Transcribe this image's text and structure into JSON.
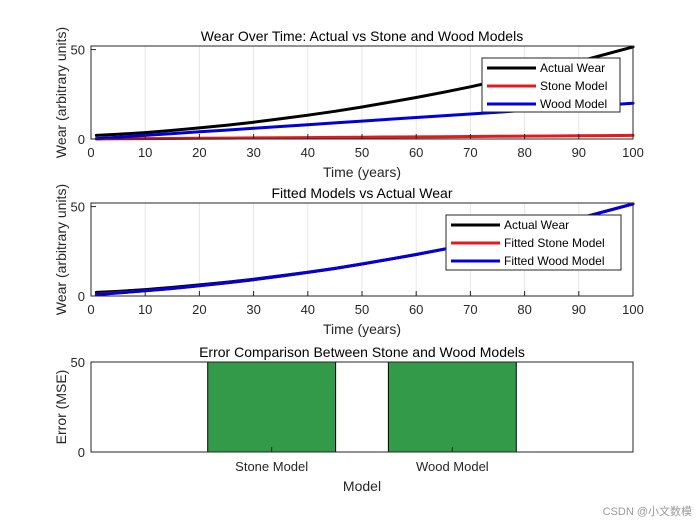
{
  "chart_data": [
    {
      "type": "line",
      "title": "Wear Over Time: Actual vs Stone and Wood Models",
      "xlabel": "Time (years)",
      "ylabel": "Wear (arbitrary units)",
      "xlim": [
        0,
        100
      ],
      "ylim": [
        0,
        52
      ],
      "xticks": [
        0,
        10,
        20,
        30,
        40,
        50,
        60,
        70,
        80,
        90,
        100
      ],
      "yticks": [
        0,
        50
      ],
      "grid": "x",
      "legend_position": "top-right",
      "x": [
        1,
        5,
        10,
        15,
        20,
        25,
        30,
        35,
        40,
        45,
        50,
        55,
        60,
        65,
        70,
        75,
        80,
        85,
        90,
        95,
        100
      ],
      "series": [
        {
          "name": "Actual Wear",
          "color": "#000000",
          "values": [
            2.0,
            2.6,
            3.6,
            4.8,
            6.2,
            7.7,
            9.4,
            11.3,
            13.3,
            15.5,
            17.9,
            20.5,
            23.2,
            26.1,
            29.2,
            32.5,
            36.0,
            39.6,
            43.4,
            47.4,
            51.5
          ]
        },
        {
          "name": "Stone Model",
          "color": "#e31a1c",
          "values": [
            0.0,
            0.1,
            0.2,
            0.3,
            0.4,
            0.5,
            0.6,
            0.7,
            0.8,
            0.9,
            1.0,
            1.1,
            1.2,
            1.3,
            1.4,
            1.5,
            1.6,
            1.7,
            1.8,
            1.9,
            2.0
          ]
        },
        {
          "name": "Wood Model",
          "color": "#0000dd",
          "values": [
            0.2,
            1.0,
            2.0,
            3.0,
            4.0,
            5.0,
            6.0,
            7.0,
            8.0,
            9.0,
            10.0,
            11.0,
            12.0,
            13.0,
            14.0,
            15.0,
            16.0,
            17.0,
            18.0,
            19.0,
            20.0
          ]
        }
      ]
    },
    {
      "type": "line",
      "title": "Fitted Models vs Actual Wear",
      "xlabel": "Time (years)",
      "ylabel": "Wear (arbitrary units)",
      "xlim": [
        0,
        100
      ],
      "ylim": [
        0,
        52
      ],
      "xticks": [
        0,
        10,
        20,
        30,
        40,
        50,
        60,
        70,
        80,
        90,
        100
      ],
      "yticks": [
        0,
        50
      ],
      "grid": "x",
      "legend_position": "top-right",
      "x": [
        1,
        5,
        10,
        15,
        20,
        25,
        30,
        35,
        40,
        45,
        50,
        55,
        60,
        65,
        70,
        75,
        80,
        85,
        90,
        95,
        100
      ],
      "series": [
        {
          "name": "Actual Wear",
          "color": "#000000",
          "values": [
            2.0,
            2.6,
            3.6,
            4.8,
            6.2,
            7.7,
            9.4,
            11.3,
            13.3,
            15.5,
            17.9,
            20.5,
            23.2,
            26.1,
            29.2,
            32.5,
            36.0,
            39.6,
            43.4,
            47.4,
            51.5
          ]
        },
        {
          "name": "Fitted Stone Model",
          "color": "#e31a1c",
          "values": [
            1.0,
            1.8,
            2.9,
            4.2,
            5.7,
            7.3,
            9.1,
            11.1,
            13.2,
            15.4,
            17.9,
            20.5,
            23.2,
            26.1,
            29.2,
            32.5,
            36.0,
            39.6,
            43.4,
            47.4,
            51.5
          ]
        },
        {
          "name": "Fitted Wood Model",
          "color": "#0000dd",
          "values": [
            0.8,
            1.7,
            2.9,
            4.2,
            5.7,
            7.3,
            9.1,
            11.1,
            13.2,
            15.4,
            17.9,
            20.5,
            23.2,
            26.1,
            29.2,
            32.5,
            36.0,
            39.6,
            43.4,
            47.4,
            51.5
          ]
        }
      ]
    },
    {
      "type": "bar",
      "title": "Error Comparison Between Stone and Wood Models",
      "xlabel": "Model",
      "ylabel": "Error (MSE)",
      "ylim": [
        0,
        50
      ],
      "yticks": [
        0,
        50
      ],
      "categories": [
        "Stone Model",
        "Wood Model"
      ],
      "values": [
        50,
        50
      ],
      "color": "#339a4a"
    }
  ],
  "watermark": "CSDN @小文数模"
}
